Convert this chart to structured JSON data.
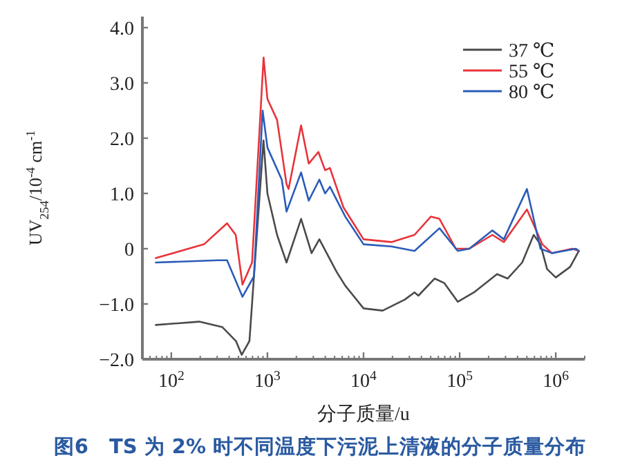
{
  "chart_data": {
    "type": "line",
    "title": "图6　TS 为 2% 时不同温度下污泥上清液的分子质量分布",
    "xlabel": "分子质量/u",
    "ylabel": "UV$_{254}$/10$^{-4}$ cm$^{-1}$",
    "log": "x",
    "grid": false,
    "legend": "top right",
    "marker": "none",
    "line_style": "solid",
    "xlim": [
      50,
      2000000
    ],
    "ylim": [
      -2,
      4.2
    ],
    "xticks": [
      {
        "value": 100,
        "label": "10$^{2}$"
      },
      {
        "value": 1000,
        "label": "10$^{3}$"
      },
      {
        "value": 10000,
        "label": "10$^{4}$"
      },
      {
        "value": 100000,
        "label": "10$^{5}$"
      },
      {
        "value": 1000000,
        "label": "10$^{6}$"
      }
    ],
    "yticks": [
      {
        "value": -2,
        "label": "−2.0"
      },
      {
        "value": -1,
        "label": "−1.0"
      },
      0,
      {
        "value": 1,
        "label": "1.0"
      },
      {
        "value": 2,
        "label": "2.0"
      },
      {
        "value": 3,
        "label": "3.0"
      },
      {
        "value": 4,
        "label": "4.0"
      }
    ],
    "series": [
      {
        "name": "37 ℃",
        "color": "#4a4a4a",
        "x": [
          69,
          195,
          340,
          470,
          540,
          650,
          910,
          1000,
          1260,
          1580,
          2240,
          2880,
          3470,
          5250,
          6460,
          10000,
          15800,
          26900,
          33900,
          37200,
          55000,
          69000,
          95500,
          141000,
          245000,
          316000,
          447000,
          589000,
          692000,
          813000,
          1000000,
          1410000,
          1740000
        ],
        "values": [
          -1.38,
          -1.32,
          -1.42,
          -1.67,
          -1.92,
          -1.67,
          1.96,
          1.0,
          0.25,
          -0.25,
          0.54,
          -0.08,
          0.17,
          -0.42,
          -0.67,
          -1.08,
          -1.12,
          -0.92,
          -0.79,
          -0.85,
          -0.54,
          -0.62,
          -0.96,
          -0.79,
          -0.46,
          -0.54,
          -0.25,
          0.25,
          0.08,
          -0.37,
          -0.52,
          -0.33,
          -0.04
        ]
      },
      {
        "name": "55 ℃",
        "color": "#e8333a",
        "x": [
          69,
          219,
          380,
          468,
          550,
          692,
          912,
          1000,
          1260,
          1580,
          1660,
          2240,
          2690,
          3390,
          3980,
          4470,
          6170,
          10000,
          19500,
          33900,
          50100,
          61700,
          91200,
          126000,
          219000,
          288000,
          501000,
          724000,
          912000,
          1480000,
          1740000
        ],
        "values": [
          -0.17,
          0.08,
          0.46,
          0.25,
          -0.65,
          -0.25,
          3.46,
          2.71,
          2.33,
          1.17,
          1.08,
          2.23,
          1.54,
          1.75,
          1.42,
          1.46,
          0.75,
          0.17,
          0.12,
          0.25,
          0.58,
          0.54,
          0,
          0,
          0.25,
          0.12,
          0.71,
          0.08,
          -0.08,
          0,
          -0.04
        ]
      },
      {
        "name": "80 ℃",
        "color": "#2a5cb8",
        "x": [
          69,
          302,
          380,
          550,
          724,
          891,
          1000,
          1410,
          1580,
          2240,
          2690,
          3470,
          3980,
          4470,
          6460,
          10000,
          19500,
          33900,
          61700,
          95500,
          126000,
          219000,
          288000,
          501000,
          692000,
          912000,
          1620000,
          1740000
        ],
        "values": [
          -0.25,
          -0.21,
          -0.21,
          -0.87,
          -0.5,
          2.5,
          1.83,
          1.25,
          0.67,
          1.38,
          0.87,
          1.25,
          1.0,
          1.12,
          0.58,
          0.08,
          0.04,
          -0.04,
          0.37,
          -0.04,
          0,
          0.33,
          0.17,
          1.08,
          0,
          -0.08,
          0,
          -0.04
        ]
      }
    ]
  }
}
